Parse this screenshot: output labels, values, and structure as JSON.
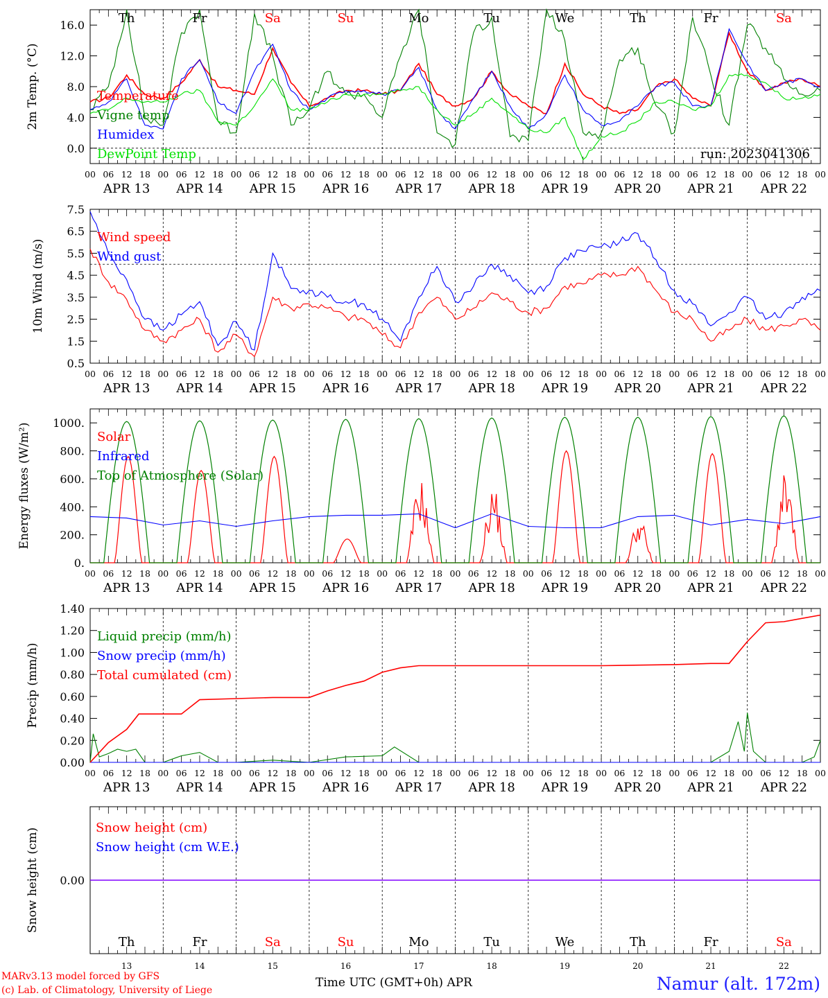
{
  "days": {
    "weekdays": [
      "Th",
      "Fr",
      "Sa",
      "Su",
      "Mo",
      "Tu",
      "We",
      "Th",
      "Fr",
      "Sa"
    ],
    "weekend_flags": [
      false,
      false,
      true,
      true,
      false,
      false,
      false,
      false,
      false,
      true
    ],
    "dates": [
      "APR 13",
      "APR 14",
      "APR 15",
      "APR 16",
      "APR 17",
      "APR 18",
      "APR 19",
      "APR 20",
      "APR 21",
      "APR 22"
    ],
    "day_numbers": [
      "13",
      "14",
      "15",
      "16",
      "17",
      "18",
      "19",
      "20",
      "21",
      "22"
    ],
    "hour_ticks": [
      "00",
      "06",
      "12",
      "18"
    ],
    "final_hour": "00"
  },
  "colors": {
    "red": "#ff0000",
    "green": "#008000",
    "blue": "#0000ff",
    "lightgreen": "#00e000",
    "weekend": "#ff0000",
    "purple": "#8000ff"
  },
  "chart_data": [
    {
      "type": "line",
      "ylabel": "2m Temp. (°C)",
      "ylim": [
        -2,
        18
      ],
      "yticks": [
        "16.0",
        "12.0",
        "8.0",
        "4.0",
        "0.0"
      ],
      "reference_line": 0,
      "run_label": "run: 2023041306",
      "x_unit": "hours since APR 13 00 UTC",
      "series": [
        {
          "name": "Temperature",
          "color": "red",
          "x": [
            0,
            6,
            12,
            18,
            24,
            30,
            36,
            42,
            48,
            54,
            60,
            66,
            72,
            78,
            84,
            90,
            96,
            102,
            108,
            114,
            120,
            126,
            132,
            138,
            144,
            150,
            156,
            162,
            168,
            174,
            180,
            186,
            192,
            198,
            204,
            210,
            216,
            222,
            228,
            234,
            240
          ],
          "values": [
            6.0,
            6.5,
            9.5,
            7.0,
            6.5,
            8.5,
            11.5,
            8.0,
            7.5,
            7.0,
            13.0,
            8.5,
            5.5,
            6.5,
            7.5,
            7.5,
            7.0,
            7.5,
            11.0,
            7.0,
            5.5,
            6.5,
            10.0,
            7.0,
            5.5,
            4.5,
            11.0,
            7.0,
            5.5,
            4.5,
            5.0,
            8.0,
            9.0,
            6.5,
            5.5,
            15.0,
            10.0,
            7.5,
            8.5,
            9.0,
            8.0
          ]
        },
        {
          "name": "Vigne temp",
          "color": "green",
          "x": [
            0,
            6,
            12,
            18,
            24,
            30,
            36,
            42,
            48,
            54,
            60,
            66,
            72,
            78,
            84,
            90,
            96,
            102,
            108,
            114,
            120,
            126,
            132,
            138,
            144,
            150,
            156,
            162,
            168,
            174,
            180,
            186,
            192,
            198,
            204,
            210,
            216,
            222,
            228,
            234,
            240
          ],
          "values": [
            5.0,
            8.0,
            18.0,
            4.0,
            3.0,
            15.0,
            18.0,
            3.5,
            2.0,
            17.5,
            12.0,
            3.0,
            5.0,
            10.0,
            7.0,
            7.0,
            4.0,
            12.0,
            18.0,
            2.0,
            0.5,
            15.0,
            17.0,
            1.5,
            1.0,
            18.0,
            14.0,
            2.0,
            2.0,
            11.5,
            13.0,
            5.5,
            2.0,
            17.0,
            9.5,
            3.0,
            16.0,
            13.0,
            9.0,
            7.0,
            7.5
          ]
        },
        {
          "name": "Humidex",
          "color": "blue",
          "x": [
            0,
            6,
            12,
            18,
            24,
            30,
            36,
            42,
            48,
            54,
            60,
            66,
            72,
            78,
            84,
            90,
            96,
            102,
            108,
            114,
            120,
            126,
            132,
            138,
            144,
            150,
            156,
            162,
            168,
            174,
            180,
            186,
            192,
            198,
            204,
            210,
            216,
            222,
            228,
            234,
            240
          ],
          "values": [
            5.0,
            6.0,
            9.0,
            3.0,
            2.5,
            9.0,
            11.5,
            6.0,
            4.5,
            10.0,
            13.5,
            7.5,
            5.0,
            6.5,
            7.5,
            7.5,
            7.0,
            7.5,
            10.5,
            5.0,
            2.5,
            6.5,
            10.0,
            5.5,
            2.5,
            4.5,
            9.5,
            5.0,
            3.0,
            3.5,
            5.5,
            8.0,
            8.5,
            5.5,
            5.5,
            15.5,
            11.0,
            7.5,
            8.5,
            9.0,
            8.0
          ]
        },
        {
          "name": "DewPoint Temp",
          "color": "lightgreen",
          "x": [
            0,
            6,
            12,
            18,
            24,
            30,
            36,
            42,
            48,
            54,
            60,
            66,
            72,
            78,
            84,
            90,
            96,
            102,
            108,
            114,
            120,
            126,
            132,
            138,
            144,
            150,
            156,
            162,
            168,
            174,
            180,
            186,
            192,
            198,
            204,
            210,
            216,
            222,
            228,
            234,
            240
          ],
          "values": [
            4.5,
            5.0,
            6.5,
            6.0,
            6.0,
            7.0,
            7.5,
            3.5,
            3.0,
            5.5,
            9.0,
            5.0,
            5.0,
            6.0,
            7.0,
            7.0,
            7.0,
            7.5,
            8.0,
            5.0,
            3.0,
            4.5,
            6.5,
            4.5,
            2.5,
            2.0,
            4.0,
            -1.5,
            1.5,
            2.0,
            3.5,
            6.0,
            6.0,
            5.0,
            5.5,
            9.5,
            9.5,
            8.5,
            6.5,
            6.5,
            7.0
          ]
        }
      ]
    },
    {
      "type": "line",
      "ylabel": "10m Wind (m/s)",
      "ylim": [
        0.5,
        7.5
      ],
      "yticks": [
        "7.5",
        "6.5",
        "5.5",
        "4.5",
        "3.5",
        "2.5",
        "1.5",
        "0.5"
      ],
      "reference_line": 5.0,
      "series": [
        {
          "name": "Wind speed",
          "color": "red",
          "x": [
            0,
            6,
            12,
            18,
            24,
            30,
            36,
            42,
            48,
            54,
            60,
            66,
            72,
            78,
            84,
            90,
            96,
            102,
            108,
            114,
            120,
            126,
            132,
            138,
            144,
            150,
            156,
            162,
            168,
            174,
            180,
            186,
            192,
            198,
            204,
            210,
            216,
            222,
            228,
            234,
            240
          ],
          "values": [
            5.7,
            4.2,
            3.4,
            2.0,
            1.5,
            2.0,
            2.5,
            1.0,
            1.8,
            0.8,
            3.5,
            3.0,
            3.2,
            3.0,
            2.6,
            2.5,
            1.8,
            1.2,
            2.8,
            3.5,
            2.5,
            3.0,
            3.7,
            3.3,
            2.8,
            3.0,
            4.0,
            4.1,
            4.5,
            4.5,
            4.9,
            3.8,
            2.8,
            2.5,
            1.5,
            2.0,
            2.5,
            2.0,
            2.2,
            2.5,
            2.0
          ]
        },
        {
          "name": "Wind gust",
          "color": "blue",
          "x": [
            0,
            6,
            12,
            18,
            24,
            30,
            36,
            42,
            48,
            54,
            60,
            66,
            72,
            78,
            84,
            90,
            96,
            102,
            108,
            114,
            120,
            126,
            132,
            138,
            144,
            150,
            156,
            162,
            168,
            174,
            180,
            186,
            192,
            198,
            204,
            210,
            216,
            222,
            228,
            234,
            240
          ],
          "values": [
            7.4,
            5.5,
            4.3,
            2.5,
            2.0,
            2.7,
            3.3,
            1.3,
            2.4,
            1.1,
            5.5,
            3.9,
            3.8,
            3.5,
            3.3,
            3.2,
            2.5,
            1.5,
            3.5,
            4.9,
            3.3,
            4.0,
            5.0,
            4.5,
            3.7,
            4.0,
            5.3,
            5.6,
            5.8,
            6.0,
            6.4,
            5.2,
            3.8,
            3.2,
            2.2,
            2.8,
            3.5,
            2.5,
            2.8,
            3.5,
            3.8
          ]
        }
      ]
    },
    {
      "type": "line",
      "ylabel": "Energy fluxes (W/m²)",
      "ylim": [
        0,
        1100
      ],
      "yticks": [
        "1000.",
        "800.",
        "600.",
        "400.",
        "200.",
        "0."
      ],
      "series": [
        {
          "name": "Solar",
          "color": "red",
          "peaks": [
            760,
            660,
            760,
            170,
            560,
            500,
            800,
            300,
            780,
            580
          ],
          "shape": "noisy"
        },
        {
          "name": "Infrared",
          "color": "blue",
          "x": [
            0,
            12,
            24,
            36,
            48,
            60,
            72,
            84,
            96,
            108,
            120,
            132,
            144,
            156,
            168,
            180,
            192,
            204,
            216,
            228,
            240
          ],
          "values": [
            330,
            320,
            270,
            300,
            260,
            300,
            330,
            340,
            340,
            350,
            250,
            350,
            260,
            250,
            250,
            330,
            340,
            270,
            310,
            280,
            330
          ]
        },
        {
          "name": "Top of Atmosphere (Solar)",
          "color": "green",
          "peaks": [
            1010,
            1015,
            1020,
            1025,
            1030,
            1035,
            1040,
            1040,
            1045,
            1050
          ],
          "shape": "smooth"
        }
      ]
    },
    {
      "type": "line",
      "ylabel": "Precip (mm/h)",
      "ylim": [
        0,
        1.4
      ],
      "yticks": [
        "1.40",
        "1.20",
        "1.00",
        "0.80",
        "0.60",
        "0.40",
        "0.20",
        "0.00"
      ],
      "series": [
        {
          "name": "Liquid precip (mm/h)",
          "color": "green",
          "x": [
            0,
            1,
            3,
            6,
            9,
            12,
            15,
            18,
            24,
            30,
            36,
            42,
            48,
            60,
            72,
            84,
            96,
            100,
            108,
            120,
            144,
            168,
            192,
            204,
            210,
            213,
            215,
            216,
            218,
            222,
            228,
            234,
            238,
            240
          ],
          "values": [
            0.0,
            0.26,
            0.05,
            0.08,
            0.12,
            0.1,
            0.12,
            0.0,
            0.0,
            0.06,
            0.09,
            0.0,
            0.0,
            0.02,
            0.0,
            0.05,
            0.06,
            0.14,
            0.0,
            0.0,
            0.0,
            0.0,
            0.0,
            0.0,
            0.1,
            0.37,
            0.1,
            0.45,
            0.1,
            0.0,
            0.0,
            0.0,
            0.05,
            0.2
          ]
        },
        {
          "name": "Snow precip (mm/h)",
          "color": "blue",
          "x": [
            0,
            240
          ],
          "values": [
            0,
            0
          ]
        },
        {
          "name": "Total cumulated (cm)",
          "color": "red",
          "x": [
            0,
            6,
            12,
            16,
            24,
            30,
            36,
            48,
            60,
            72,
            78,
            84,
            90,
            96,
            102,
            108,
            120,
            144,
            168,
            192,
            204,
            210,
            216,
            222,
            228,
            240
          ],
          "values": [
            0.0,
            0.18,
            0.3,
            0.44,
            0.44,
            0.44,
            0.57,
            0.58,
            0.59,
            0.59,
            0.65,
            0.7,
            0.74,
            0.82,
            0.86,
            0.88,
            0.88,
            0.88,
            0.88,
            0.89,
            0.9,
            0.9,
            1.1,
            1.27,
            1.28,
            1.34
          ]
        }
      ]
    },
    {
      "type": "line",
      "ylabel": "Snow height (cm)",
      "ylim": [
        -1,
        1
      ],
      "yticks": [
        "0.00"
      ],
      "series": [
        {
          "name": "Snow height (cm)",
          "color": "red",
          "x": [
            0,
            240
          ],
          "values": [
            0,
            0
          ]
        },
        {
          "name": "Snow height (cm W.E.)",
          "color": "blue",
          "x": [
            0,
            240
          ],
          "values": [
            0,
            0
          ]
        }
      ]
    }
  ],
  "footer": {
    "credit_line1": "MARv3.13 model forced by GFS",
    "credit_line2": "(c) Lab. of Climatology, University of Liege",
    "xlabel": "Time UTC (GMT+0h) APR",
    "location": "Namur (alt. 172m)"
  }
}
